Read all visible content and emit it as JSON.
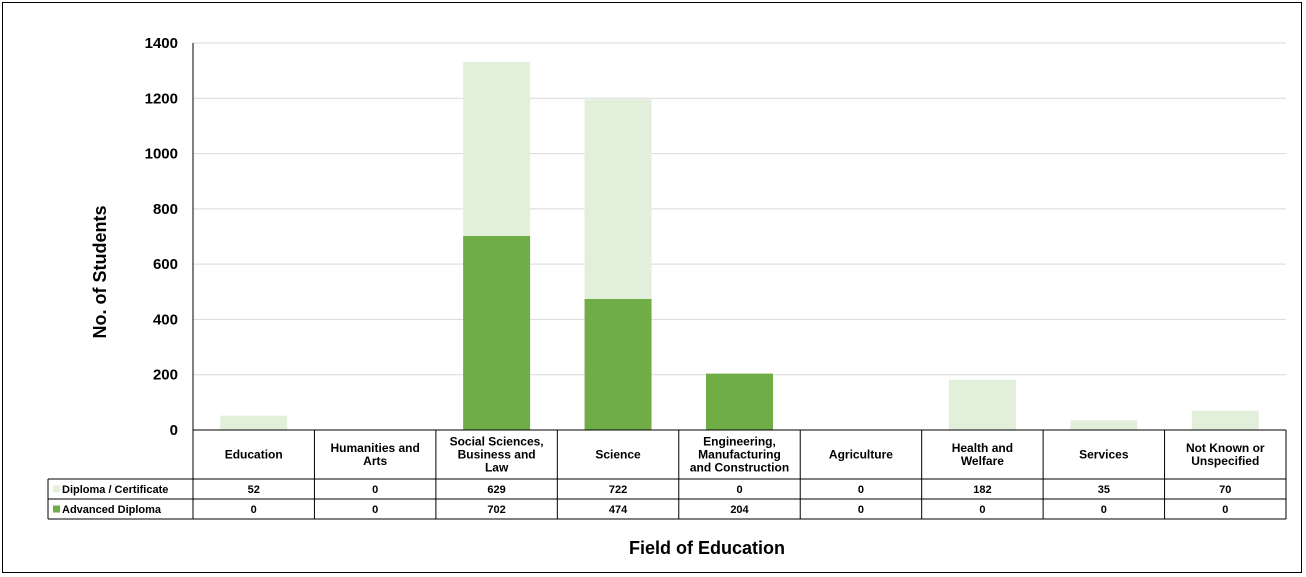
{
  "chart_data": {
    "type": "bar",
    "stacked": true,
    "categories": [
      [
        "Education"
      ],
      [
        "Humanities and",
        "Arts"
      ],
      [
        "Social Sciences,",
        "Business and",
        "Law"
      ],
      [
        "Science"
      ],
      [
        "Engineering,",
        "Manufacturing",
        "and Construction"
      ],
      [
        "Agriculture"
      ],
      [
        "Health and",
        "Welfare"
      ],
      [
        "Services"
      ],
      [
        "Not Known or",
        "Unspecified"
      ]
    ],
    "series": [
      {
        "name": "Advanced Diploma",
        "color": "#70ad47",
        "values": [
          0,
          0,
          702,
          474,
          204,
          0,
          0,
          0,
          0
        ]
      },
      {
        "name": "Diploma / Certificate",
        "color": "#e2efda",
        "values": [
          52,
          0,
          629,
          722,
          0,
          0,
          182,
          35,
          70
        ]
      }
    ],
    "table_rows": [
      {
        "legend": "Diploma / Certificate",
        "color": "#e2efda",
        "values": [
          "52",
          "0",
          "629",
          "722",
          "0",
          "0",
          "182",
          "35",
          "70"
        ]
      },
      {
        "legend": "Advanced Diploma",
        "color": "#70ad47",
        "values": [
          "0",
          "0",
          "702",
          "474",
          "204",
          "0",
          "0",
          "0",
          "0"
        ]
      }
    ],
    "xlabel": "Field of Education",
    "ylabel": "No. of Students",
    "ylim": [
      0,
      1400
    ],
    "yticks": [
      "0",
      "200",
      "400",
      "600",
      "800",
      "1000",
      "1200",
      "1400"
    ],
    "grid": true,
    "legend": "data-table"
  }
}
